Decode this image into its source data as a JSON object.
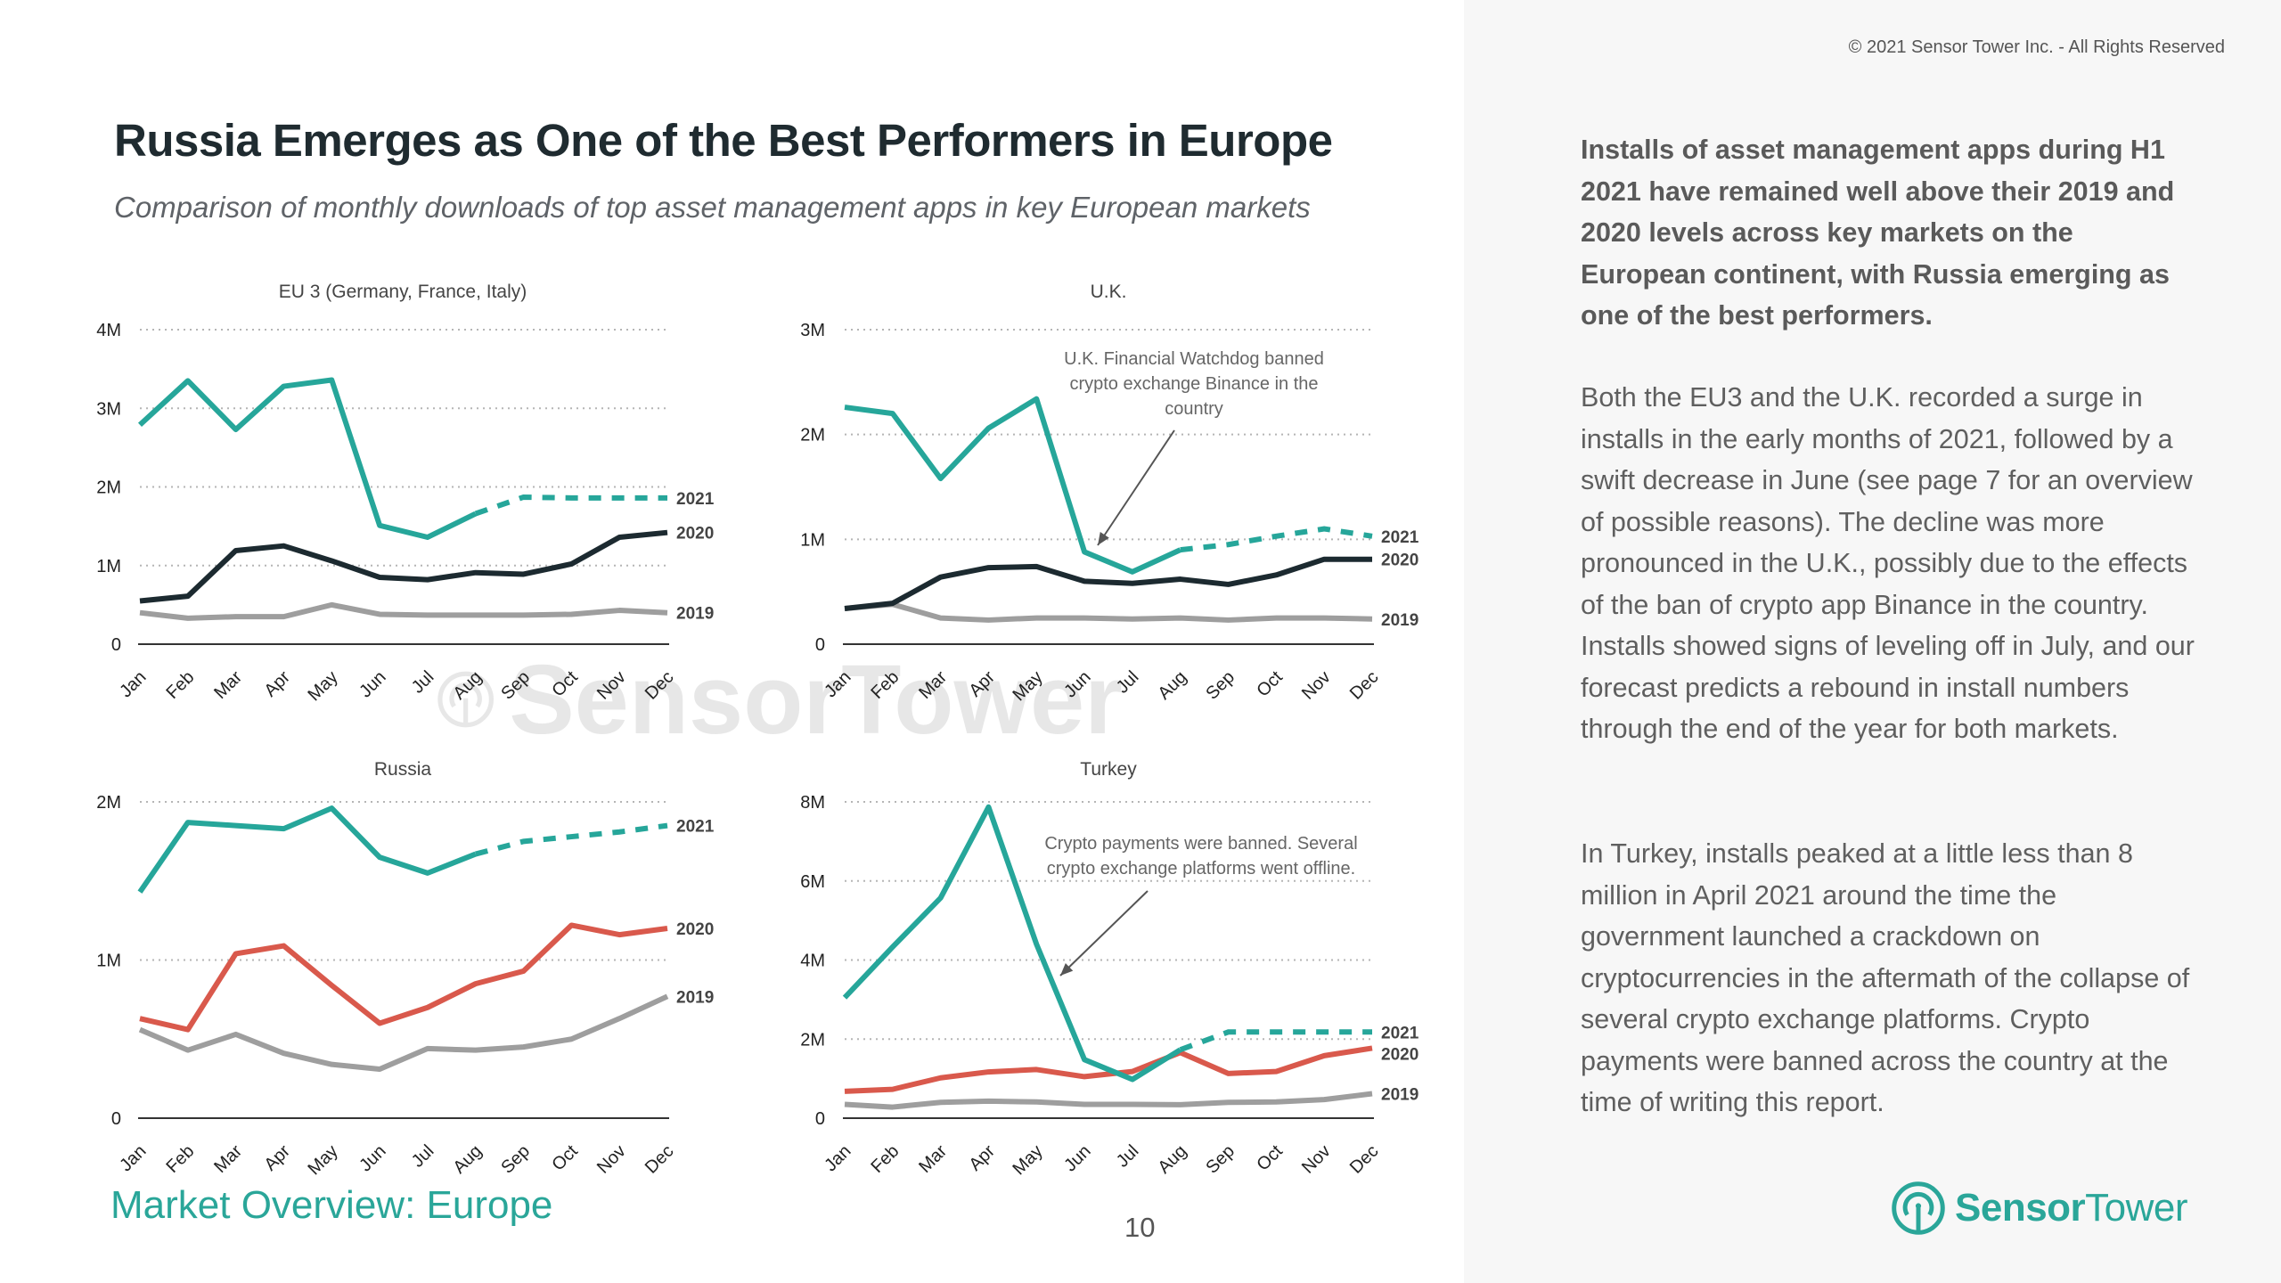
{
  "header": {
    "title": "Russia Emerges as One of the Best Performers in Europe",
    "subtitle": "Comparison of monthly downloads of top asset management apps in key European markets"
  },
  "sidebar": {
    "copyright": "© 2021 Sensor Tower Inc. - All Rights Reserved",
    "paragraphs": [
      "Installs of asset management apps during H1 2021 have remained well above their 2019 and 2020 levels across key markets on the European continent, with Russia emerging as one of the best performers.",
      "Both the EU3 and the U.K. recorded a surge in installs in the early months of 2021, followed by a swift decrease in June (see page 7 for an overview of possible reasons). The decline was more pronounced in the U.K., possibly due to the effects of the ban of crypto app Binance in the country. Installs showed signs of leveling off in July, and our forecast predicts a rebound in install numbers through the end of the year for both markets.",
      "In Turkey, installs peaked at a little less than 8 million in April 2021 around the time the government launched a crackdown on cryptocurrencies in the aftermath of the collapse of several crypto exchange platforms. Crypto payments were banned across the country at the time of writing this report."
    ]
  },
  "footer": {
    "section": "Market Overview: Europe",
    "page_number": "10",
    "logo_bold": "Sensor",
    "logo_regular": "Tower"
  },
  "watermark": {
    "text": "SensorTower"
  },
  "colors": {
    "2021": "#26a69a",
    "2020_dark": "#1c2a30",
    "2020_red": "#d9594c",
    "2019": "#9e9e9e",
    "brand": "#2aa699"
  },
  "chart_data": [
    {
      "id": "eu3",
      "type": "line",
      "title": "EU 3 (Germany, France, Italy)",
      "categories": [
        "Jan",
        "Feb",
        "Mar",
        "Apr",
        "May",
        "Jun",
        "Jul",
        "Aug",
        "Sep",
        "Oct",
        "Nov",
        "Dec"
      ],
      "ylim": [
        0,
        4000000
      ],
      "yticks": [
        0,
        1000000,
        2000000,
        3000000,
        4000000
      ],
      "ytick_labels": [
        "0",
        "1M",
        "2M",
        "3M",
        "4M"
      ],
      "grid": true,
      "series": [
        {
          "name": "2021",
          "color": "#26a69a",
          "forecast_from_index": 7,
          "values": [
            2790000,
            3350000,
            2730000,
            3280000,
            3360000,
            1510000,
            1360000,
            1660000,
            1870000,
            1860000,
            1860000,
            1860000
          ]
        },
        {
          "name": "2020",
          "color": "#1c2a30",
          "values": [
            550000,
            610000,
            1190000,
            1250000,
            1060000,
            850000,
            820000,
            910000,
            890000,
            1020000,
            1360000,
            1420000
          ]
        },
        {
          "name": "2019",
          "color": "#9e9e9e",
          "values": [
            400000,
            330000,
            350000,
            350000,
            500000,
            380000,
            370000,
            370000,
            370000,
            380000,
            430000,
            400000
          ]
        }
      ]
    },
    {
      "id": "uk",
      "type": "line",
      "title": "U.K.",
      "categories": [
        "Jan",
        "Feb",
        "Mar",
        "Apr",
        "May",
        "Jun",
        "Jul",
        "Aug",
        "Sep",
        "Oct",
        "Nov",
        "Dec"
      ],
      "ylim": [
        0,
        3000000
      ],
      "yticks": [
        0,
        1000000,
        2000000,
        3000000
      ],
      "ytick_labels": [
        "0",
        "1M",
        "2M",
        "3M"
      ],
      "grid": true,
      "annotation": {
        "lines": [
          "U.K. Financial Watchdog banned",
          "crypto exchange Binance in the",
          "country"
        ],
        "points_to": "Jun"
      },
      "series": [
        {
          "name": "2021",
          "color": "#26a69a",
          "forecast_from_index": 7,
          "values": [
            2260000,
            2200000,
            1580000,
            2060000,
            2340000,
            880000,
            690000,
            900000,
            950000,
            1030000,
            1100000,
            1030000
          ]
        },
        {
          "name": "2020",
          "color": "#1c2a30",
          "values": [
            340000,
            390000,
            640000,
            730000,
            740000,
            600000,
            580000,
            620000,
            570000,
            660000,
            810000,
            810000
          ]
        },
        {
          "name": "2019",
          "color": "#9e9e9e",
          "values": [
            340000,
            380000,
            250000,
            230000,
            250000,
            250000,
            240000,
            250000,
            230000,
            250000,
            250000,
            240000
          ]
        }
      ]
    },
    {
      "id": "russia",
      "type": "line",
      "title": "Russia",
      "categories": [
        "Jan",
        "Feb",
        "Mar",
        "Apr",
        "May",
        "Jun",
        "Jul",
        "Aug",
        "Sep",
        "Oct",
        "Nov",
        "Dec"
      ],
      "ylim": [
        0,
        2000000
      ],
      "yticks": [
        0,
        1000000,
        2000000
      ],
      "ytick_labels": [
        "0",
        "1M",
        "2M"
      ],
      "grid": true,
      "series": [
        {
          "name": "2021",
          "color": "#26a69a",
          "forecast_from_index": 7,
          "values": [
            1430000,
            1870000,
            1850000,
            1830000,
            1960000,
            1650000,
            1550000,
            1670000,
            1750000,
            1780000,
            1810000,
            1850000
          ]
        },
        {
          "name": "2020",
          "color": "#d9594c",
          "values": [
            630000,
            560000,
            1040000,
            1090000,
            840000,
            600000,
            700000,
            850000,
            930000,
            1220000,
            1160000,
            1200000
          ]
        },
        {
          "name": "2019",
          "color": "#9e9e9e",
          "values": [
            560000,
            430000,
            530000,
            410000,
            340000,
            310000,
            440000,
            430000,
            450000,
            500000,
            630000,
            770000
          ]
        }
      ]
    },
    {
      "id": "turkey",
      "type": "line",
      "title": "Turkey",
      "categories": [
        "Jan",
        "Feb",
        "Mar",
        "Apr",
        "May",
        "Jun",
        "Jul",
        "Aug",
        "Sep",
        "Oct",
        "Nov",
        "Dec"
      ],
      "ylim": [
        0,
        8000000
      ],
      "yticks": [
        0,
        2000000,
        4000000,
        6000000,
        8000000
      ],
      "ytick_labels": [
        "0",
        "2M",
        "4M",
        "6M",
        "8M"
      ],
      "grid": true,
      "annotation": {
        "lines": [
          "Crypto payments were banned. Several",
          "crypto exchange platforms went offline."
        ],
        "points_to": "May"
      },
      "series": [
        {
          "name": "2021",
          "color": "#26a69a",
          "forecast_from_index": 7,
          "values": [
            3050000,
            4330000,
            5570000,
            7870000,
            4400000,
            1480000,
            980000,
            1730000,
            2180000,
            2180000,
            2180000,
            2180000
          ]
        },
        {
          "name": "2020",
          "color": "#d9594c",
          "values": [
            680000,
            730000,
            1020000,
            1170000,
            1230000,
            1050000,
            1180000,
            1660000,
            1130000,
            1180000,
            1580000,
            1770000
          ]
        },
        {
          "name": "2019",
          "color": "#9e9e9e",
          "values": [
            350000,
            280000,
            400000,
            430000,
            410000,
            350000,
            350000,
            340000,
            400000,
            410000,
            470000,
            620000
          ]
        }
      ]
    }
  ]
}
